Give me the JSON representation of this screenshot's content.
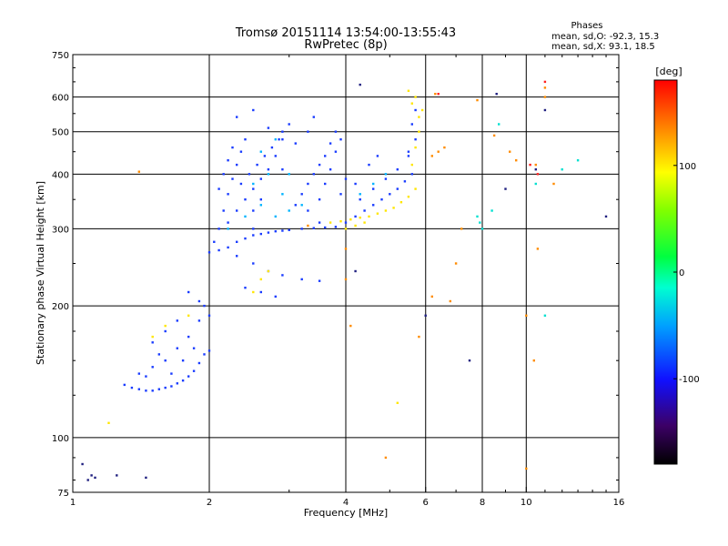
{
  "chart_data": {
    "type": "scatter",
    "title": "Tromsø 20151114 13:54:00-13:55:43",
    "subtitle": "RwPretec (8p)",
    "xlabel": "Frequency [MHz]",
    "ylabel": "Stationary phase Virtual Height [km]",
    "x_scale": "log",
    "y_scale": "log",
    "xlim": [
      1,
      16
    ],
    "ylim": [
      75,
      750
    ],
    "x_ticks": [
      1,
      2,
      4,
      6,
      8,
      10,
      16
    ],
    "x_tick_labels": [
      "1",
      "2",
      "4",
      "6",
      "8",
      "10",
      "16"
    ],
    "y_ticks": [
      75,
      100,
      200,
      300,
      400,
      500,
      600,
      750
    ],
    "y_tick_labels": [
      "75",
      "100",
      "200",
      "300",
      "400",
      "500",
      "600",
      "750"
    ],
    "grid": true,
    "phase_stats": {
      "heading": "Phases",
      "line_o": "mean, sd,O: -92.3, 15.3",
      "line_x": "mean, sd,X:  93.1, 18.5"
    },
    "colorbar": {
      "label": "[deg]",
      "range": [
        -180,
        180
      ],
      "ticks": [
        100,
        0,
        -100
      ],
      "tick_labels": [
        "100",
        "0",
        "-100"
      ],
      "colormap": "rainbow"
    },
    "series": [
      {
        "color": "#1a3cff",
        "phase_deg": -100,
        "points": [
          [
            1.3,
            132
          ],
          [
            1.35,
            130
          ],
          [
            1.4,
            129
          ],
          [
            1.45,
            128
          ],
          [
            1.5,
            128
          ],
          [
            1.55,
            129
          ],
          [
            1.6,
            130
          ],
          [
            1.65,
            131
          ],
          [
            1.7,
            133
          ],
          [
            1.75,
            135
          ],
          [
            1.8,
            138
          ],
          [
            1.85,
            142
          ],
          [
            1.9,
            148
          ],
          [
            1.95,
            155
          ],
          [
            2.0,
            158
          ],
          [
            1.4,
            140
          ],
          [
            1.5,
            145
          ],
          [
            1.6,
            150
          ],
          [
            1.7,
            160
          ],
          [
            1.8,
            170
          ],
          [
            1.9,
            185
          ],
          [
            1.95,
            200
          ],
          [
            1.5,
            165
          ],
          [
            1.6,
            175
          ],
          [
            1.7,
            185
          ],
          [
            1.55,
            155
          ],
          [
            1.75,
            150
          ],
          [
            1.85,
            160
          ],
          [
            1.65,
            140
          ],
          [
            1.45,
            138
          ],
          [
            2.0,
            265
          ],
          [
            2.1,
            268
          ],
          [
            2.2,
            272
          ],
          [
            2.3,
            280
          ],
          [
            2.4,
            285
          ],
          [
            2.5,
            290
          ],
          [
            2.6,
            292
          ],
          [
            2.7,
            294
          ],
          [
            2.8,
            296
          ],
          [
            2.9,
            297
          ],
          [
            3.0,
            298
          ],
          [
            3.2,
            300
          ],
          [
            3.4,
            301
          ],
          [
            3.6,
            302
          ],
          [
            3.8,
            303
          ],
          [
            2.05,
            280
          ],
          [
            2.1,
            300
          ],
          [
            2.15,
            330
          ],
          [
            2.2,
            360
          ],
          [
            2.25,
            390
          ],
          [
            2.3,
            420
          ],
          [
            2.35,
            450
          ],
          [
            2.4,
            480
          ],
          [
            2.2,
            310
          ],
          [
            2.3,
            330
          ],
          [
            2.4,
            350
          ],
          [
            2.5,
            370
          ],
          [
            2.6,
            390
          ],
          [
            2.7,
            410
          ],
          [
            2.8,
            440
          ],
          [
            2.1,
            370
          ],
          [
            2.15,
            400
          ],
          [
            2.2,
            430
          ],
          [
            2.25,
            460
          ],
          [
            2.35,
            380
          ],
          [
            2.45,
            400
          ],
          [
            2.55,
            420
          ],
          [
            2.65,
            440
          ],
          [
            2.75,
            460
          ],
          [
            2.85,
            480
          ],
          [
            2.9,
            500
          ],
          [
            3.0,
            520
          ],
          [
            2.5,
            330
          ],
          [
            2.6,
            350
          ],
          [
            2.9,
            410
          ],
          [
            3.1,
            340
          ],
          [
            3.2,
            360
          ],
          [
            3.3,
            380
          ],
          [
            3.4,
            400
          ],
          [
            3.5,
            420
          ],
          [
            3.6,
            440
          ],
          [
            3.7,
            470
          ],
          [
            3.8,
            500
          ],
          [
            3.3,
            330
          ],
          [
            3.5,
            350
          ],
          [
            3.6,
            380
          ],
          [
            3.7,
            410
          ],
          [
            3.8,
            450
          ],
          [
            3.9,
            480
          ],
          [
            3.5,
            310
          ],
          [
            4.0,
            310
          ],
          [
            4.2,
            320
          ],
          [
            4.4,
            330
          ],
          [
            4.6,
            340
          ],
          [
            4.8,
            350
          ],
          [
            5.0,
            360
          ],
          [
            5.2,
            370
          ],
          [
            5.4,
            385
          ],
          [
            5.6,
            400
          ],
          [
            4.3,
            350
          ],
          [
            4.6,
            370
          ],
          [
            4.9,
            390
          ],
          [
            5.2,
            410
          ],
          [
            5.5,
            440
          ],
          [
            5.7,
            480
          ],
          [
            2.3,
            260
          ],
          [
            2.5,
            250
          ],
          [
            2.7,
            240
          ],
          [
            2.9,
            235
          ],
          [
            3.2,
            230
          ],
          [
            3.5,
            228
          ],
          [
            2.4,
            220
          ],
          [
            2.6,
            215
          ],
          [
            2.8,
            210
          ],
          [
            1.9,
            205
          ],
          [
            2.0,
            190
          ],
          [
            1.8,
            215
          ],
          [
            2.5,
            300
          ],
          [
            3.3,
            500
          ],
          [
            3.4,
            540
          ],
          [
            5.6,
            520
          ],
          [
            5.7,
            560
          ],
          [
            5.5,
            450
          ],
          [
            4.0,
            390
          ],
          [
            4.2,
            380
          ],
          [
            3.9,
            360
          ],
          [
            4.5,
            420
          ],
          [
            4.7,
            440
          ],
          [
            2.3,
            540
          ],
          [
            2.5,
            560
          ],
          [
            2.7,
            510
          ],
          [
            2.9,
            480
          ],
          [
            3.1,
            470
          ]
        ]
      },
      {
        "color": "#00b4ff",
        "phase_deg": -70,
        "points": [
          [
            2.4,
            320
          ],
          [
            2.6,
            340
          ],
          [
            2.8,
            320
          ],
          [
            3.0,
            330
          ],
          [
            2.5,
            380
          ],
          [
            2.7,
            400
          ],
          [
            2.9,
            360
          ],
          [
            3.2,
            340
          ],
          [
            4.3,
            360
          ],
          [
            4.6,
            380
          ],
          [
            4.9,
            400
          ],
          [
            2.2,
            300
          ],
          [
            2.6,
            450
          ],
          [
            2.8,
            480
          ],
          [
            3.0,
            400
          ]
        ]
      },
      {
        "color": "#ffe600",
        "phase_deg": 110,
        "points": [
          [
            3.7,
            310
          ],
          [
            3.9,
            312
          ],
          [
            4.1,
            315
          ],
          [
            4.3,
            318
          ],
          [
            4.5,
            320
          ],
          [
            4.7,
            325
          ],
          [
            4.9,
            330
          ],
          [
            5.1,
            335
          ],
          [
            5.3,
            345
          ],
          [
            5.5,
            355
          ],
          [
            5.7,
            370
          ],
          [
            5.6,
            420
          ],
          [
            5.7,
            460
          ],
          [
            5.8,
            500
          ],
          [
            5.9,
            560
          ],
          [
            5.7,
            600
          ],
          [
            5.5,
            620
          ],
          [
            5.6,
            580
          ],
          [
            5.8,
            540
          ],
          [
            4.0,
            300
          ],
          [
            4.2,
            305
          ],
          [
            4.4,
            310
          ],
          [
            1.5,
            170
          ],
          [
            1.6,
            180
          ],
          [
            1.8,
            190
          ],
          [
            2.5,
            215
          ],
          [
            2.6,
            230
          ],
          [
            2.7,
            240
          ],
          [
            5.2,
            120
          ],
          [
            1.2,
            108
          ]
        ]
      },
      {
        "color": "#ff8c00",
        "phase_deg": 140,
        "points": [
          [
            4.0,
            270
          ],
          [
            4.0,
            230
          ],
          [
            4.1,
            180
          ],
          [
            4.9,
            90
          ],
          [
            5.8,
            170
          ],
          [
            6.2,
            440
          ],
          [
            6.4,
            450
          ],
          [
            6.6,
            460
          ],
          [
            6.2,
            210
          ],
          [
            6.8,
            205
          ],
          [
            7.0,
            250
          ],
          [
            7.8,
            590
          ],
          [
            8.5,
            490
          ],
          [
            9.2,
            450
          ],
          [
            9.5,
            430
          ],
          [
            10.0,
            190
          ],
          [
            10.0,
            85
          ],
          [
            10.5,
            420
          ],
          [
            10.6,
            270
          ],
          [
            10.4,
            150
          ],
          [
            11.0,
            630
          ],
          [
            11.0,
            600
          ],
          [
            11.5,
            380
          ],
          [
            1.4,
            405
          ],
          [
            6.3,
            610
          ],
          [
            3.3,
            305
          ],
          [
            7.2,
            300
          ]
        ]
      },
      {
        "color": "#00e0d0",
        "phase_deg": -40,
        "points": [
          [
            7.8,
            320
          ],
          [
            7.9,
            310
          ],
          [
            8.0,
            300
          ],
          [
            8.4,
            330
          ],
          [
            8.7,
            520
          ],
          [
            10.5,
            380
          ],
          [
            13.0,
            430
          ],
          [
            11.0,
            190
          ],
          [
            12.0,
            410
          ]
        ]
      },
      {
        "color": "#ff2020",
        "phase_deg": 170,
        "points": [
          [
            6.4,
            610
          ],
          [
            10.2,
            420
          ],
          [
            10.6,
            400
          ],
          [
            11.0,
            650
          ]
        ]
      },
      {
        "color": "#202080",
        "phase_deg": -130,
        "points": [
          [
            1.05,
            87
          ],
          [
            1.1,
            82
          ],
          [
            1.08,
            80
          ],
          [
            1.12,
            81
          ],
          [
            1.25,
            82
          ],
          [
            1.45,
            81
          ],
          [
            4.2,
            240
          ],
          [
            4.3,
            640
          ],
          [
            6.0,
            190
          ],
          [
            7.5,
            150
          ],
          [
            8.6,
            610
          ],
          [
            9.0,
            370
          ],
          [
            11.0,
            560
          ],
          [
            10.5,
            410
          ],
          [
            15.0,
            320
          ]
        ]
      }
    ]
  }
}
